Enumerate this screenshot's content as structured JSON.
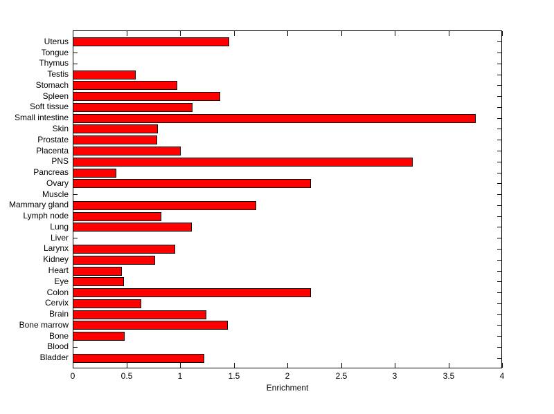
{
  "figure": {
    "background": "#ffffff"
  },
  "chart_data": {
    "type": "bar",
    "orientation": "horizontal",
    "title": "",
    "xlabel": "Enrichment",
    "ylabel": "",
    "xlim": [
      0,
      4
    ],
    "xticks": [
      0,
      0.5,
      1,
      1.5,
      2,
      2.5,
      3,
      3.5,
      4
    ],
    "xtick_labels": [
      "0",
      "0.5",
      "1",
      "1.5",
      "2",
      "2.5",
      "3",
      "3.5",
      "4"
    ],
    "grid": false,
    "legend": false,
    "bar_color": "#ff0000",
    "bar_edge_color": "#000000",
    "axis_color": "#000000",
    "categories": [
      "Uterus",
      "Tongue",
      "Thymus",
      "Testis",
      "Stomach",
      "Spleen",
      "Soft tissue",
      "Small intestine",
      "Skin",
      "Prostate",
      "Placenta",
      "PNS",
      "Pancreas",
      "Ovary",
      "Muscle",
      "Mammary gland",
      "Lymph node",
      "Lung",
      "Liver",
      "Larynx",
      "Kidney",
      "Heart",
      "Eye",
      "Colon",
      "Cervix",
      "Brain",
      "Bone marrow",
      "Bone",
      "Blood",
      "Bladder"
    ],
    "values": [
      1.45,
      0,
      0,
      0.58,
      0.97,
      1.37,
      1.11,
      3.75,
      0.79,
      0.78,
      1.0,
      3.16,
      0.4,
      2.21,
      0,
      1.7,
      0.82,
      1.1,
      0,
      0.95,
      0.76,
      0.45,
      0.47,
      2.21,
      0.63,
      1.24,
      1.44,
      0.48,
      0,
      1.22
    ]
  }
}
